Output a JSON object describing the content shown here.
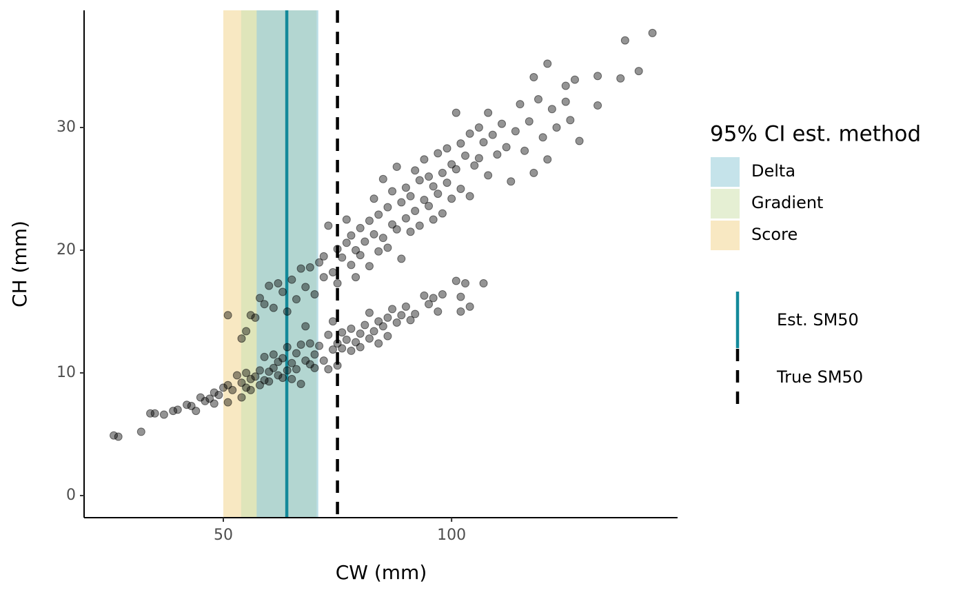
{
  "chart_data": {
    "type": "scatter",
    "x_label": "CW (mm)",
    "y_label": "CH (mm)",
    "xlim": [
      19.5,
      149.5
    ],
    "ylim": [
      -1.8,
      39.55
    ],
    "xticks": [
      50,
      100
    ],
    "yticks": [
      0,
      10,
      20,
      30
    ],
    "legend_title": "95% CI est. method",
    "bands": [
      {
        "name": "Score",
        "color": "#f8e8c2",
        "xmin": 50,
        "xmax": 70.4
      },
      {
        "name": "Gradient",
        "color": "#d4e4b6",
        "xmin": 53.9,
        "xmax": 70.4
      },
      {
        "name": "Delta",
        "color": "#9fd0dc",
        "xmin": 57.3,
        "xmax": 70.8
      }
    ],
    "vlines": [
      {
        "name": "Est. SM50",
        "x": 63.9,
        "color": "#13899a",
        "dashed": false
      },
      {
        "name": "True SM50",
        "x": 75,
        "color": "#000000",
        "dashed": true
      }
    ],
    "series": [
      {
        "color": "#000000",
        "x": [
          26,
          27,
          32,
          34,
          35,
          37,
          39,
          40,
          42,
          43,
          44,
          45,
          46,
          47,
          48,
          48,
          49,
          50,
          51,
          51,
          52,
          53,
          54,
          54,
          55,
          55,
          56,
          56,
          57,
          58,
          58,
          59,
          59,
          60,
          60,
          61,
          61,
          62,
          62,
          63,
          63,
          64,
          64,
          65,
          65,
          66,
          66,
          67,
          67,
          68,
          68,
          69,
          69,
          70,
          70,
          71,
          72,
          73,
          73,
          74,
          74,
          75,
          75,
          76,
          76,
          77,
          78,
          78,
          79,
          80,
          80,
          81,
          82,
          82,
          83,
          84,
          84,
          85,
          86,
          86,
          87,
          88,
          89,
          90,
          91,
          92,
          94,
          95,
          96,
          97,
          98,
          101,
          102,
          102,
          103,
          104,
          107,
          51,
          54,
          55,
          56,
          57,
          58,
          59,
          60,
          61,
          62,
          63,
          64,
          65,
          66,
          67,
          68,
          69,
          70,
          71,
          72,
          72,
          73,
          74,
          75,
          75,
          76,
          77,
          77,
          78,
          78,
          79,
          79,
          80,
          80,
          81,
          82,
          82,
          83,
          83,
          84,
          84,
          85,
          85,
          86,
          86,
          87,
          87,
          88,
          88,
          89,
          89,
          90,
          90,
          91,
          91,
          92,
          92,
          93,
          93,
          94,
          94,
          95,
          95,
          96,
          96,
          97,
          97,
          98,
          98,
          99,
          99,
          100,
          100,
          101,
          101,
          102,
          102,
          103,
          104,
          104,
          105,
          106,
          106,
          107,
          108,
          108,
          109,
          110,
          111,
          112,
          113,
          114,
          115,
          116,
          117,
          118,
          118,
          119,
          120,
          121,
          121,
          122,
          123,
          125,
          125,
          126,
          127,
          128,
          132,
          132,
          137,
          138,
          141,
          144
        ],
        "y": [
          4.9,
          4.8,
          5.2,
          6.7,
          6.7,
          6.6,
          6.9,
          7.0,
          7.4,
          7.3,
          6.9,
          8.0,
          7.7,
          7.9,
          7.5,
          8.4,
          8.2,
          8.8,
          7.6,
          9.0,
          8.6,
          9.8,
          8.0,
          9.2,
          8.8,
          10.0,
          9.5,
          8.6,
          9.7,
          9.0,
          10.2,
          9.4,
          11.3,
          10.1,
          9.3,
          10.4,
          11.5,
          9.8,
          10.9,
          9.6,
          11.2,
          10.2,
          12.1,
          10.8,
          9.5,
          11.6,
          10.3,
          12.3,
          9.1,
          11.0,
          13.8,
          10.7,
          12.4,
          11.5,
          10.4,
          12.2,
          11.0,
          13.1,
          10.3,
          11.9,
          14.2,
          12.4,
          10.6,
          12.0,
          13.3,
          12.7,
          11.8,
          13.6,
          12.5,
          13.2,
          12.1,
          13.9,
          12.8,
          14.9,
          13.4,
          12.4,
          14.2,
          13.8,
          14.5,
          13.0,
          15.2,
          14.1,
          14.7,
          15.4,
          14.3,
          14.8,
          16.3,
          15.6,
          16.1,
          15.0,
          16.4,
          17.5,
          16.2,
          15.0,
          17.3,
          15.4,
          17.3,
          14.7,
          12.8,
          13.4,
          14.7,
          14.5,
          16.1,
          15.6,
          17.1,
          15.3,
          17.3,
          16.6,
          15.0,
          17.6,
          16.0,
          18.5,
          17.0,
          18.6,
          16.4,
          19.0,
          17.8,
          19.5,
          22.0,
          18.2,
          20.1,
          17.3,
          19.4,
          22.5,
          20.6,
          18.8,
          21.2,
          20.0,
          17.8,
          21.8,
          19.6,
          20.7,
          22.4,
          18.7,
          21.3,
          24.2,
          19.9,
          22.9,
          21.0,
          25.8,
          23.5,
          20.2,
          22.1,
          24.8,
          21.7,
          26.8,
          23.9,
          19.3,
          22.6,
          25.1,
          24.4,
          21.5,
          26.5,
          23.2,
          25.7,
          22.0,
          27.4,
          24.1,
          23.6,
          26.0,
          25.2,
          22.5,
          27.9,
          24.6,
          26.3,
          23.0,
          28.3,
          25.5,
          27.0,
          24.2,
          31.2,
          26.6,
          28.7,
          25.0,
          27.7,
          29.5,
          24.4,
          26.9,
          30.0,
          27.5,
          28.8,
          31.2,
          26.1,
          29.4,
          27.8,
          30.3,
          28.4,
          25.6,
          29.7,
          31.9,
          28.1,
          30.5,
          34.1,
          26.3,
          32.3,
          29.2,
          35.2,
          27.4,
          31.5,
          30.0,
          32.1,
          33.4,
          30.6,
          33.9,
          28.9,
          34.2,
          31.8,
          34.0,
          37.1,
          34.6,
          37.7
        ]
      }
    ]
  }
}
